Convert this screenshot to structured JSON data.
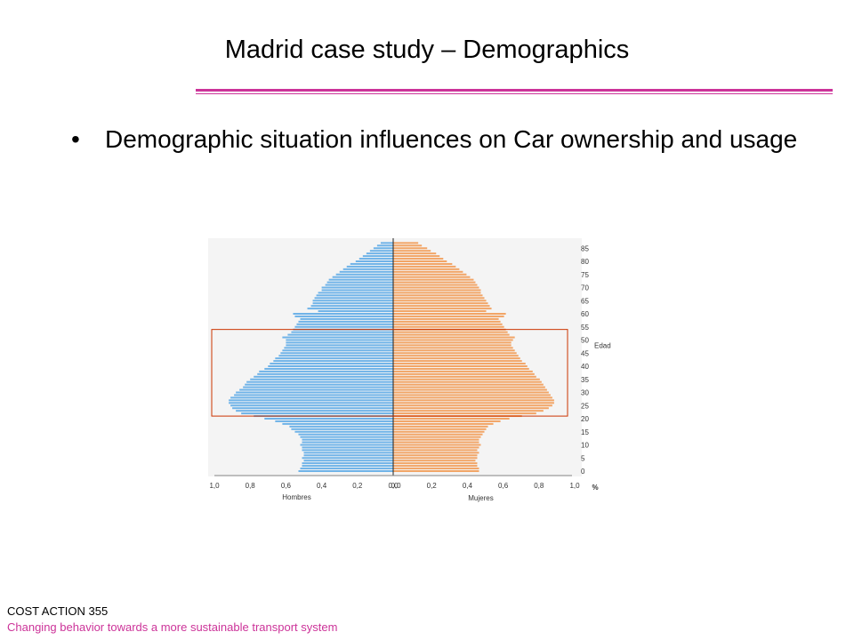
{
  "slide": {
    "title": "Madrid case study – Demographics",
    "bullet_symbol": "•",
    "bullet_text": "Demographic situation influences on Car ownership and usage"
  },
  "footer": {
    "line1": "COST ACTION 355",
    "line2": "Changing behavior towards a more sustainable transport system"
  },
  "colors": {
    "accent_rule": "#cc3399",
    "men_bars": "#6fb3e8",
    "women_bars": "#f2a566",
    "highlight_box": "#cc3300",
    "footer_line2": "#cc3399"
  },
  "chart_data": {
    "type": "bar",
    "orientation": "horizontal",
    "subtype": "population-pyramid",
    "title": "",
    "xlabel_left": "Hombres",
    "xlabel_right": "Mujeres",
    "x_unit": "%",
    "ylabel": "Edad",
    "xlim": [
      0,
      1.0
    ],
    "x_ticks_left": [
      "1,0",
      "0,8",
      "0,6",
      "0,4",
      "0,2",
      "0,0"
    ],
    "x_ticks_right": [
      "0,0",
      "0,2",
      "0,4",
      "0,6",
      "0,8",
      "1,0"
    ],
    "y_ticks": [
      "0",
      "5",
      "10",
      "15",
      "20",
      "25",
      "30",
      "35",
      "40",
      "45",
      "50",
      "55",
      "60",
      "65",
      "70",
      "75",
      "80",
      "85"
    ],
    "ages": [
      0,
      1,
      2,
      3,
      4,
      5,
      6,
      7,
      8,
      9,
      10,
      11,
      12,
      13,
      14,
      15,
      16,
      17,
      18,
      19,
      20,
      21,
      22,
      23,
      24,
      25,
      26,
      27,
      28,
      29,
      30,
      31,
      32,
      33,
      34,
      35,
      36,
      37,
      38,
      39,
      40,
      41,
      42,
      43,
      44,
      45,
      46,
      47,
      48,
      49,
      50,
      51,
      52,
      53,
      54,
      55,
      56,
      57,
      58,
      59,
      60,
      61,
      62,
      63,
      64,
      65,
      66,
      67,
      68,
      69,
      70,
      71,
      72,
      73,
      74,
      75,
      76,
      77,
      78,
      79,
      80,
      81,
      82,
      83,
      84,
      85,
      86,
      87
    ],
    "series": [
      {
        "name": "Hombres",
        "values": [
          0.53,
          0.52,
          0.51,
          0.51,
          0.5,
          0.51,
          0.5,
          0.5,
          0.51,
          0.51,
          0.52,
          0.51,
          0.51,
          0.52,
          0.53,
          0.55,
          0.57,
          0.58,
          0.62,
          0.66,
          0.72,
          0.78,
          0.85,
          0.88,
          0.9,
          0.91,
          0.92,
          0.92,
          0.91,
          0.89,
          0.88,
          0.86,
          0.84,
          0.83,
          0.82,
          0.8,
          0.78,
          0.76,
          0.75,
          0.72,
          0.7,
          0.69,
          0.67,
          0.66,
          0.64,
          0.63,
          0.62,
          0.61,
          0.6,
          0.6,
          0.6,
          0.62,
          0.59,
          0.57,
          0.56,
          0.55,
          0.54,
          0.53,
          0.52,
          0.55,
          0.56,
          0.42,
          0.48,
          0.46,
          0.45,
          0.45,
          0.44,
          0.43,
          0.42,
          0.4,
          0.4,
          0.38,
          0.37,
          0.36,
          0.34,
          0.32,
          0.3,
          0.28,
          0.26,
          0.24,
          0.21,
          0.19,
          0.17,
          0.15,
          0.13,
          0.11,
          0.09,
          0.07
        ]
      },
      {
        "name": "Mujeres",
        "values": [
          0.48,
          0.48,
          0.47,
          0.47,
          0.46,
          0.47,
          0.47,
          0.48,
          0.47,
          0.48,
          0.49,
          0.48,
          0.48,
          0.49,
          0.5,
          0.51,
          0.52,
          0.53,
          0.56,
          0.6,
          0.65,
          0.72,
          0.8,
          0.84,
          0.87,
          0.89,
          0.9,
          0.9,
          0.89,
          0.88,
          0.87,
          0.86,
          0.85,
          0.84,
          0.83,
          0.82,
          0.8,
          0.79,
          0.78,
          0.76,
          0.75,
          0.74,
          0.72,
          0.71,
          0.7,
          0.69,
          0.68,
          0.67,
          0.66,
          0.66,
          0.67,
          0.68,
          0.65,
          0.64,
          0.63,
          0.62,
          0.61,
          0.6,
          0.59,
          0.62,
          0.63,
          0.52,
          0.55,
          0.54,
          0.53,
          0.52,
          0.51,
          0.5,
          0.49,
          0.49,
          0.48,
          0.47,
          0.46,
          0.45,
          0.43,
          0.41,
          0.39,
          0.37,
          0.35,
          0.33,
          0.3,
          0.28,
          0.26,
          0.24,
          0.21,
          0.19,
          0.16,
          0.14
        ]
      }
    ],
    "highlight_age_range": [
      22,
      53
    ]
  }
}
